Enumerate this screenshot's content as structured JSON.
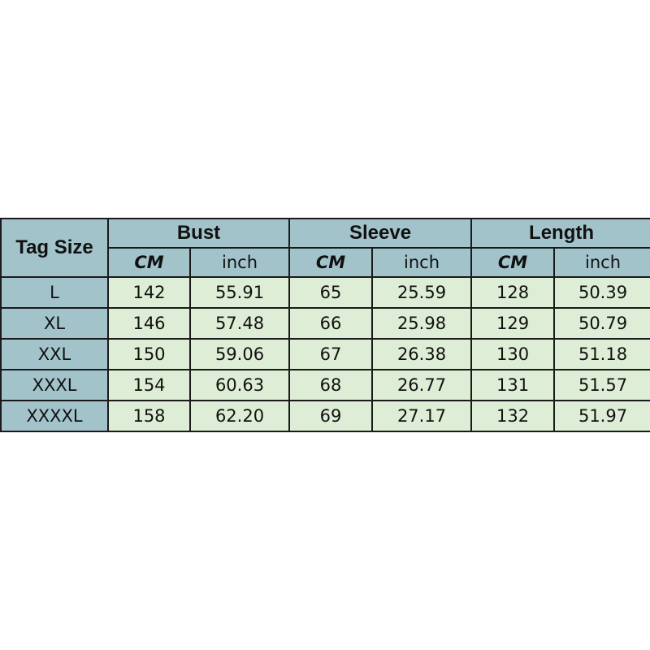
{
  "header": {
    "tag_size": "Tag Size",
    "groups": [
      "Bust",
      "Sleeve",
      "Length"
    ],
    "units": [
      "CM",
      "inch"
    ]
  },
  "rows": [
    {
      "tag": "L",
      "values": [
        "142",
        "55.91",
        "65",
        "25.59",
        "128",
        "50.39"
      ]
    },
    {
      "tag": "XL",
      "values": [
        "146",
        "57.48",
        "66",
        "25.98",
        "129",
        "50.79"
      ]
    },
    {
      "tag": "XXL",
      "values": [
        "150",
        "59.06",
        "67",
        "26.38",
        "130",
        "51.18"
      ]
    },
    {
      "tag": "XXXL",
      "values": [
        "154",
        "60.63",
        "68",
        "26.77",
        "131",
        "51.57"
      ]
    },
    {
      "tag": "XXXXL",
      "values": [
        "158",
        "62.20",
        "69",
        "27.17",
        "132",
        "51.97"
      ]
    }
  ],
  "colors": {
    "header_bg": "#a3c3cb",
    "cell_bg": "#deedd5"
  }
}
